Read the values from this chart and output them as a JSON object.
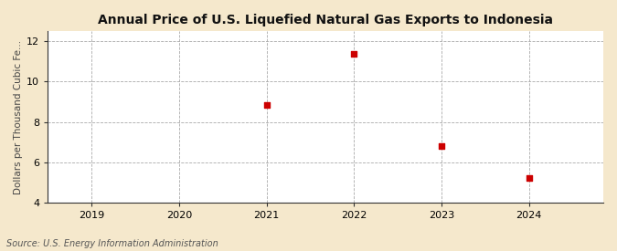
{
  "title": "Annual Price of U.S. Liquefied Natural Gas Exports to Indonesia",
  "ylabel": "Dollars per Thousand Cubic Fe...",
  "source": "Source: U.S. Energy Information Administration",
  "x": [
    2021,
    2022,
    2023,
    2024
  ],
  "y": [
    8.85,
    11.38,
    6.82,
    5.22
  ],
  "xlim": [
    2018.5,
    2024.85
  ],
  "ylim": [
    4,
    12.5
  ],
  "yticks": [
    4,
    6,
    8,
    10,
    12
  ],
  "xticks": [
    2019,
    2020,
    2021,
    2022,
    2023,
    2024
  ],
  "marker_color": "#cc0000",
  "marker": "s",
  "marker_size": 4,
  "bg_outer": "#f5e8cc",
  "bg_inner": "#ffffff",
  "grid_color": "#aaaaaa",
  "spine_color": "#333333",
  "title_fontsize": 10,
  "label_fontsize": 7.5,
  "tick_fontsize": 8,
  "source_fontsize": 7
}
